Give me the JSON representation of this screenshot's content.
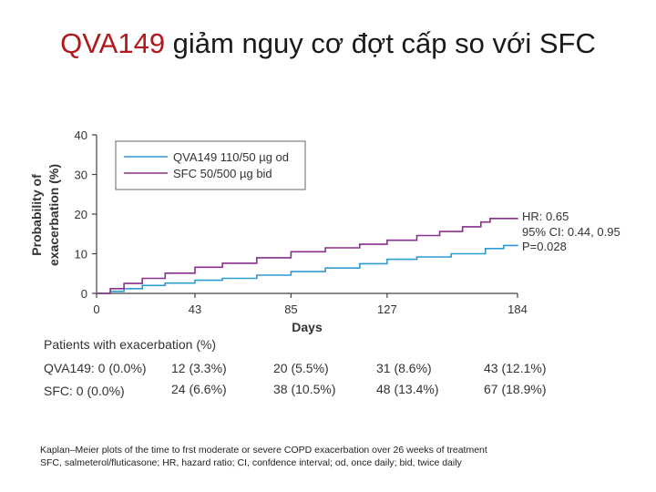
{
  "slide": {
    "title_accent": "QVA149",
    "title_rest": " giảm nguy cơ đợt cấp so với SFC"
  },
  "chart_data": {
    "type": "line",
    "title": "",
    "xlabel": "Days",
    "ylabel_line1": "Probability of",
    "ylabel_line2": "exacerbation (%)",
    "xlim": [
      0,
      184
    ],
    "ylim": [
      0,
      40
    ],
    "xticks": [
      0,
      43,
      85,
      127,
      184
    ],
    "yticks": [
      0,
      10,
      20,
      30,
      40
    ],
    "grid": false,
    "legend_position": "top-left",
    "series": [
      {
        "name": "QVA149 110/50 µg od",
        "color": "#2e9bd0",
        "x": [
          0,
          6,
          12,
          20,
          30,
          43,
          55,
          70,
          85,
          100,
          115,
          127,
          140,
          155,
          170,
          178,
          184
        ],
        "y": [
          0,
          0.5,
          1.2,
          2.0,
          2.6,
          3.3,
          3.8,
          4.6,
          5.5,
          6.4,
          7.5,
          8.6,
          9.2,
          10.0,
          11.3,
          12.1,
          12.3
        ]
      },
      {
        "name": "SFC 50/500 µg bid",
        "color": "#8a2f8d",
        "x": [
          0,
          6,
          12,
          20,
          30,
          43,
          55,
          70,
          85,
          100,
          115,
          127,
          140,
          150,
          160,
          168,
          172,
          184
        ],
        "y": [
          0,
          1.2,
          2.5,
          3.8,
          5.1,
          6.6,
          7.6,
          9.0,
          10.5,
          11.5,
          12.4,
          13.4,
          14.6,
          15.6,
          16.8,
          18.0,
          18.9,
          19.0
        ]
      }
    ],
    "annotation_hr": "HR: 0.65",
    "annotation_ci": "95% CI: 0.44, 0.95",
    "annotation_p": "P=0.028"
  },
  "table": {
    "heading": "Patients with exacerbation (%)",
    "rows": [
      {
        "label": "QVA149: 0 (0.0%)",
        "cells": [
          "12 (3.3%)",
          "20 (5.5%)",
          "31 (8.6%)",
          "43 (12.1%)"
        ]
      },
      {
        "label": "SFC: 0 (0.0%)",
        "cells": [
          "24 (6.6%)",
          "38 (10.5%)",
          "48 (13.4%)",
          "67 (18.9%)"
        ]
      }
    ]
  },
  "caption": {
    "line1": "Kaplan–Meier plots of the time to frst moderate or severe COPD exacerbation over 26 weeks of treatment",
    "line2": "SFC, salmeterol/fluticasone; HR, hazard ratio; CI, confdence interval; od, once daily; bid, twice daily"
  }
}
